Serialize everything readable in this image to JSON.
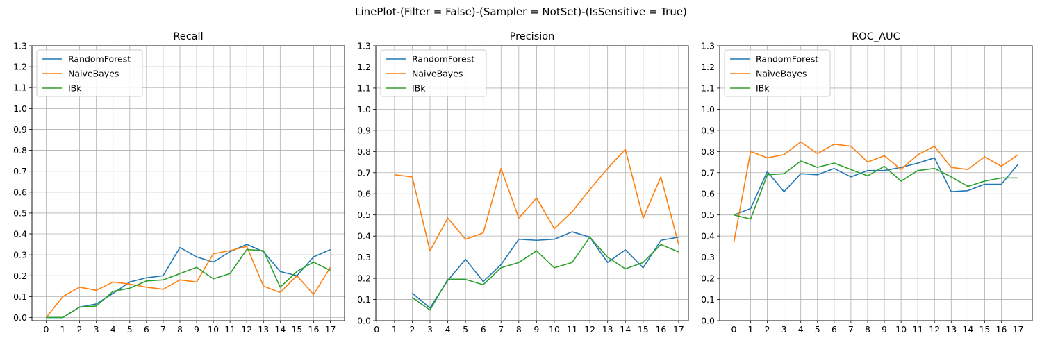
{
  "figure": {
    "title": "LinePlot-(Filter = False)-(Sampler = NotSet)-(IsSensitive = True)"
  },
  "chart_data": [
    {
      "type": "line",
      "title": "Recall",
      "xlabel": "",
      "ylabel": "",
      "x": [
        0,
        1,
        2,
        3,
        4,
        5,
        6,
        7,
        8,
        9,
        10,
        11,
        12,
        13,
        14,
        15,
        16,
        17
      ],
      "xticks": [
        0,
        1,
        2,
        3,
        4,
        5,
        6,
        7,
        8,
        9,
        10,
        11,
        12,
        13,
        14,
        15,
        16,
        17
      ],
      "yticks": [
        0.0,
        0.1,
        0.2,
        0.3,
        0.4,
        0.5,
        0.6,
        0.7,
        0.8,
        0.9,
        1.0,
        1.1,
        1.2,
        1.3
      ],
      "ytick_labels": [
        "0.0",
        "0.1",
        "0.2",
        "0.3",
        "0.4",
        "0.5",
        "0.6",
        "0.7",
        "0.8",
        "0.9",
        "1.0",
        "1.1",
        "1.2",
        "1.3"
      ],
      "xlim": [
        -0.85,
        17.85
      ],
      "ylim": [
        -0.015,
        1.3
      ],
      "grid": true,
      "legend": "top-left",
      "series": [
        {
          "name": "RandomForest",
          "color": "#1f77b4",
          "values": [
            0.0,
            0.0,
            0.05,
            0.065,
            0.115,
            0.17,
            0.19,
            0.2,
            0.335,
            0.29,
            0.265,
            0.315,
            0.35,
            0.315,
            0.22,
            0.2,
            0.29,
            0.325
          ]
        },
        {
          "name": "NaiveBayes",
          "color": "#ff7f0e",
          "values": [
            0.0,
            0.1,
            0.145,
            0.13,
            0.17,
            0.16,
            0.145,
            0.135,
            0.18,
            0.17,
            0.305,
            0.32,
            0.34,
            0.15,
            0.12,
            0.2,
            0.11,
            0.24
          ]
        },
        {
          "name": "IBk",
          "color": "#2ca02c",
          "values": [
            0.0,
            0.0,
            0.05,
            0.055,
            0.125,
            0.14,
            0.175,
            0.18,
            0.21,
            0.24,
            0.185,
            0.21,
            0.325,
            0.32,
            0.145,
            0.22,
            0.265,
            0.225
          ]
        }
      ]
    },
    {
      "type": "line",
      "title": "Precision",
      "xlabel": "",
      "ylabel": "",
      "x": [
        0,
        1,
        2,
        3,
        4,
        5,
        6,
        7,
        8,
        9,
        10,
        11,
        12,
        13,
        14,
        15,
        16,
        17
      ],
      "xticks": [
        0,
        1,
        2,
        3,
        4,
        5,
        6,
        7,
        8,
        9,
        10,
        11,
        12,
        13,
        14,
        15,
        16,
        17
      ],
      "yticks": [
        0.0,
        0.1,
        0.2,
        0.3,
        0.4,
        0.5,
        0.6,
        0.7,
        0.8,
        0.9,
        1.0,
        1.1,
        1.2,
        1.3
      ],
      "ytick_labels": [
        "0.0",
        "0.1",
        "0.2",
        "0.3",
        "0.4",
        "0.5",
        "0.6",
        "0.7",
        "0.8",
        "0.9",
        "1.0",
        "1.1",
        "1.2",
        "1.3"
      ],
      "xlim": [
        -0.05,
        17.55
      ],
      "ylim": [
        0.0,
        1.3
      ],
      "grid": true,
      "legend": "top-left",
      "series": [
        {
          "name": "RandomForest",
          "color": "#1f77b4",
          "values": [
            null,
            null,
            0.13,
            0.06,
            0.19,
            0.29,
            0.185,
            0.265,
            0.385,
            0.38,
            0.385,
            0.42,
            0.395,
            0.275,
            0.335,
            0.25,
            0.38,
            0.395
          ]
        },
        {
          "name": "NaiveBayes",
          "color": "#ff7f0e",
          "values": [
            null,
            0.69,
            0.68,
            0.33,
            0.485,
            0.385,
            0.415,
            0.72,
            0.485,
            0.58,
            0.435,
            0.515,
            0.62,
            0.72,
            0.81,
            0.485,
            0.68,
            0.36
          ]
        },
        {
          "name": "IBk",
          "color": "#2ca02c",
          "values": [
            null,
            null,
            0.11,
            0.05,
            0.195,
            0.195,
            0.17,
            0.25,
            0.275,
            0.33,
            0.25,
            0.275,
            0.395,
            0.3,
            0.245,
            0.275,
            0.36,
            0.325
          ]
        }
      ]
    },
    {
      "type": "line",
      "title": "ROC_AUC",
      "xlabel": "",
      "ylabel": "",
      "x": [
        0,
        1,
        2,
        3,
        4,
        5,
        6,
        7,
        8,
        9,
        10,
        11,
        12,
        13,
        14,
        15,
        16,
        17
      ],
      "xticks": [
        0,
        1,
        2,
        3,
        4,
        5,
        6,
        7,
        8,
        9,
        10,
        11,
        12,
        13,
        14,
        15,
        16,
        17
      ],
      "yticks": [
        0.0,
        0.1,
        0.2,
        0.3,
        0.4,
        0.5,
        0.6,
        0.7,
        0.8,
        0.9,
        1.0,
        1.1,
        1.2,
        1.3
      ],
      "ytick_labels": [
        "0.0",
        "0.1",
        "0.2",
        "0.3",
        "0.4",
        "0.5",
        "0.6",
        "0.7",
        "0.8",
        "0.9",
        "1.0",
        "1.1",
        "1.2",
        "1.3"
      ],
      "xlim": [
        -0.85,
        17.85
      ],
      "ylim": [
        0.0,
        1.3
      ],
      "grid": true,
      "legend": "top-left",
      "series": [
        {
          "name": "RandomForest",
          "color": "#1f77b4",
          "values": [
            0.5,
            0.53,
            0.705,
            0.61,
            0.695,
            0.69,
            0.72,
            0.68,
            0.71,
            0.71,
            0.725,
            0.745,
            0.77,
            0.61,
            0.615,
            0.645,
            0.645,
            0.74
          ]
        },
        {
          "name": "NaiveBayes",
          "color": "#ff7f0e",
          "values": [
            0.37,
            0.8,
            0.77,
            0.785,
            0.845,
            0.79,
            0.835,
            0.825,
            0.75,
            0.78,
            0.715,
            0.785,
            0.825,
            0.725,
            0.715,
            0.775,
            0.73,
            0.785
          ]
        },
        {
          "name": "IBk",
          "color": "#2ca02c",
          "values": [
            0.5,
            0.48,
            0.69,
            0.695,
            0.755,
            0.725,
            0.745,
            0.715,
            0.685,
            0.73,
            0.66,
            0.71,
            0.72,
            0.68,
            0.635,
            0.66,
            0.675,
            0.675
          ]
        }
      ]
    }
  ]
}
